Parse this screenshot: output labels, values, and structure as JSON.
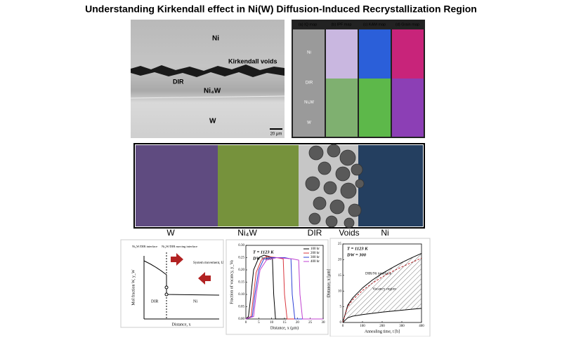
{
  "title": "Understanding Kirkendall effect in Ni(W) Diffusion-Induced Recrystallization Region",
  "micrograph": {
    "labels": [
      "Ni",
      "Kirkendall voids",
      "DIR",
      "Ni₄W",
      "W"
    ],
    "scale_bar": "20 μm"
  },
  "maps": {
    "headers": [
      "(a) IQ map",
      "(b) IPF map",
      "(c) KAM map",
      "(d) Grain map"
    ],
    "rows": [
      "Ni",
      "DIR",
      "Ni₄W",
      "W"
    ]
  },
  "schematic": {
    "labels": [
      "W",
      "Ni₄W",
      "DIR",
      "Voids",
      "Ni"
    ]
  },
  "diagram": {
    "interface": "Ni₄W/DIR interface",
    "moving_interface": "Ni₄W/DIR moving interface",
    "movement": "System movement, U",
    "ylabel": "Mol fraction W, y_W",
    "xlabel": "Distance, x",
    "regions": [
      "DIR",
      "Ni"
    ]
  },
  "chart_data": [
    {
      "type": "line",
      "annotations": [
        "T = 1123 K",
        "DW = 300"
      ],
      "xlabel": "Distance, x (μm)",
      "ylabel": "Fraction of vacancy, y_Va",
      "xlim": [
        0,
        30
      ],
      "xticks": [
        0,
        5,
        10,
        15,
        20,
        25,
        30
      ],
      "ylim": [
        0,
        0.3
      ],
      "yticks": [
        {
          "value": 0,
          "label": "0.00"
        },
        {
          "value": 0.05,
          "label": "0.05"
        },
        {
          "value": 0.1,
          "label": "0.10"
        },
        {
          "value": 0.15,
          "label": "0.15"
        },
        {
          "value": 0.2,
          "label": "0.20"
        },
        {
          "value": 0.25,
          "label": "0.25"
        },
        {
          "value": 0.3,
          "label": "0.30"
        }
      ],
      "legend": "upper right",
      "series": [
        {
          "name": "100 hr",
          "color": "#000000",
          "x": [
            0,
            1,
            2,
            3,
            5,
            7,
            9,
            10.3,
            10.8,
            11.5,
            30
          ],
          "values": [
            0,
            0.01,
            0.1,
            0.2,
            0.25,
            0.26,
            0.255,
            0.25,
            0.1,
            0,
            0
          ]
        },
        {
          "name": "200 hr",
          "color": "#d9363e",
          "x": [
            0,
            2,
            3,
            4,
            6,
            8,
            12,
            14.5,
            15,
            16,
            30
          ],
          "values": [
            0,
            0.01,
            0.1,
            0.19,
            0.24,
            0.255,
            0.25,
            0.245,
            0.1,
            0,
            0
          ]
        },
        {
          "name": "300 hr",
          "color": "#2b3fd6",
          "x": [
            0,
            2.5,
            3.5,
            5,
            7,
            10,
            15,
            17.5,
            18,
            19,
            30
          ],
          "values": [
            0,
            0.01,
            0.1,
            0.2,
            0.245,
            0.25,
            0.25,
            0.245,
            0.1,
            0,
            0
          ]
        },
        {
          "name": "400 hr",
          "color": "#c040d0",
          "x": [
            0,
            3,
            4,
            5.5,
            8,
            12,
            18,
            20.5,
            21,
            22,
            30
          ],
          "values": [
            0,
            0.01,
            0.1,
            0.2,
            0.24,
            0.25,
            0.245,
            0.24,
            0.1,
            0,
            0
          ]
        }
      ]
    },
    {
      "type": "line",
      "annotations": [
        "T = 1123 K",
        "DW = 300",
        "DIR/Ni interface",
        "Vacancy region"
      ],
      "xlabel": "Annealing time, t [h]",
      "ylabel": "Distance, x [μm]",
      "xlim": [
        0,
        400
      ],
      "xticks": [
        0,
        100,
        200,
        300,
        400
      ],
      "ylim": [
        0,
        25
      ],
      "yticks": [
        0,
        5,
        10,
        15,
        20,
        25
      ],
      "x": [
        0,
        25,
        50,
        100,
        150,
        200,
        250,
        300,
        350,
        400
      ],
      "series": [
        {
          "color": "#000000",
          "values": [
            0,
            5.5,
            7.8,
            11,
            13.5,
            15.6,
            17.4,
            19.1,
            20.6,
            22
          ]
        },
        {
          "color": "#c0282d",
          "dashed": true,
          "values": [
            0,
            5.1,
            7.2,
            10.2,
            12.5,
            14.5,
            16.2,
            17.7,
            19.1,
            20.5
          ]
        },
        {
          "color": "#000000",
          "values": [
            0,
            1.5,
            2,
            2.5,
            2.9,
            3.3,
            3.6,
            3.9,
            4.2,
            4.5
          ]
        }
      ]
    }
  ]
}
